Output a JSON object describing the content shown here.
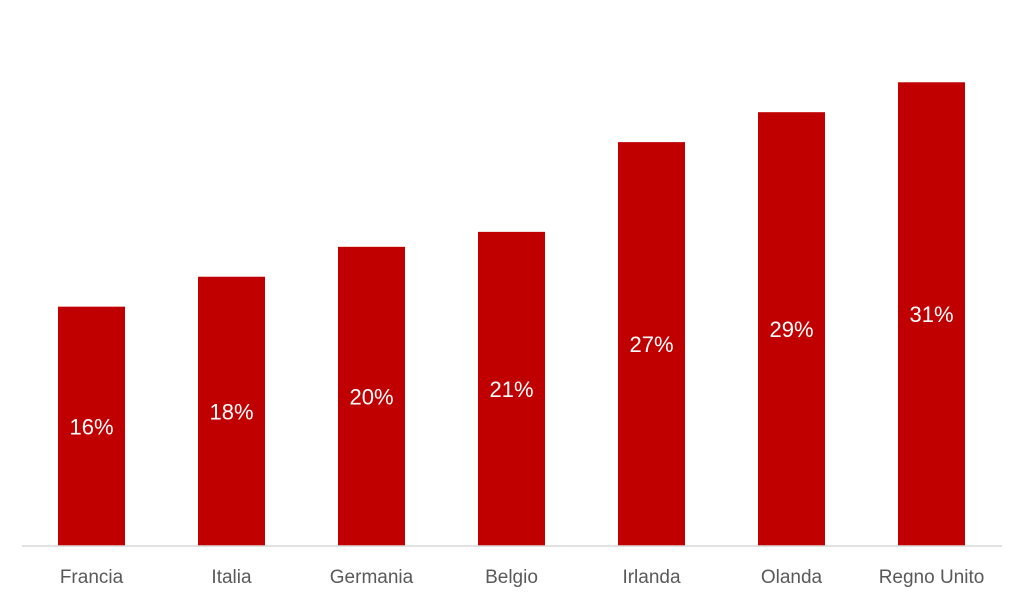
{
  "chart_data": {
    "type": "bar",
    "categories": [
      "Francia",
      "Italia",
      "Germania",
      "Belgio",
      "Irlanda",
      "Olanda",
      "Regno Unito"
    ],
    "values": [
      16,
      18,
      20,
      21,
      27,
      29,
      31
    ],
    "value_labels": [
      "16%",
      "18%",
      "20%",
      "21%",
      "27%",
      "29%",
      "31%"
    ],
    "unit": "%",
    "title": "",
    "xlabel": "",
    "ylabel": "",
    "ylim": [
      0,
      36.5
    ],
    "grid": false,
    "legend": "none",
    "bar_color": "#c00000",
    "axis_color": "#d9d9d9"
  }
}
